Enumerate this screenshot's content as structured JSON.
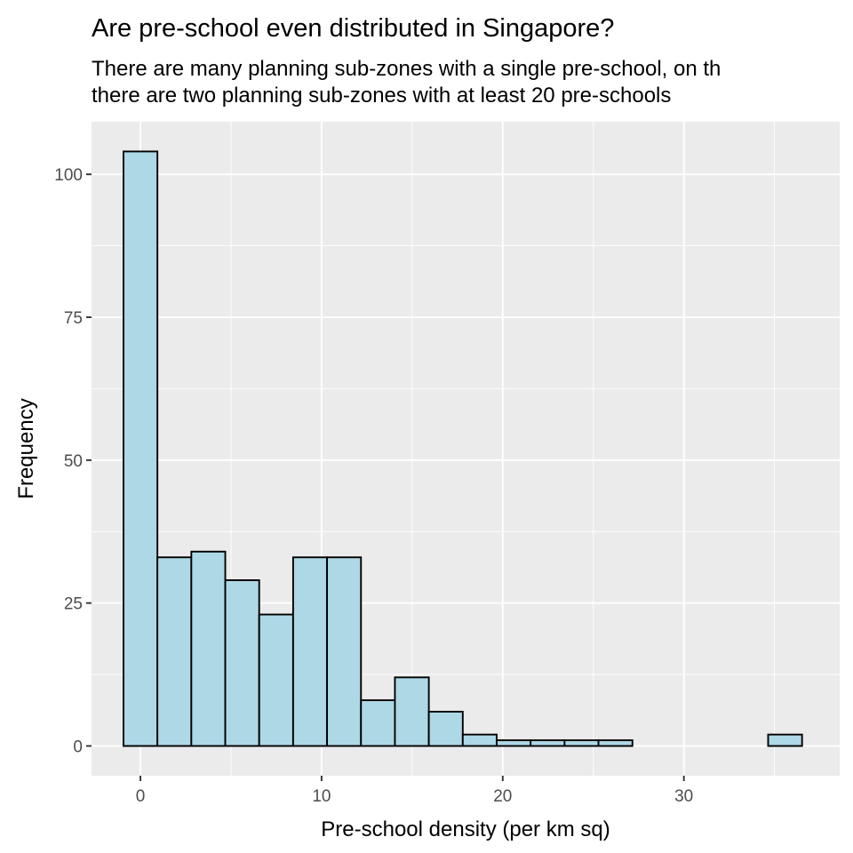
{
  "chart_data": {
    "type": "bar",
    "title": "Are pre-school even distributed in Singapore?",
    "subtitle_lines": [
      "There are many planning sub-zones with a single pre-school, on th",
      "there are two planning sub-zones with at least 20 pre-schools"
    ],
    "xlabel": "Pre-school density (per km sq)",
    "ylabel": "Frequency",
    "xlim": [
      -2.7,
      38.6
    ],
    "ylim": [
      -5.2,
      109.2
    ],
    "x_ticks": [
      0,
      10,
      20,
      30
    ],
    "y_ticks": [
      0,
      25,
      50,
      75,
      100
    ],
    "grid": true,
    "bin_width": 1.873,
    "bin_starts": [
      -0.936,
      0.937,
      2.81,
      4.683,
      6.556,
      8.429,
      10.302,
      12.175,
      14.048,
      15.921,
      17.794,
      19.667,
      21.54,
      23.413,
      25.286,
      27.159,
      29.032,
      30.905,
      32.778,
      34.651
    ],
    "values": [
      104,
      33,
      34,
      29,
      23,
      33,
      33,
      8,
      12,
      6,
      2,
      1,
      1,
      1,
      1,
      0,
      0,
      0,
      0,
      2
    ],
    "bar_fill": "#add8e6",
    "bar_stroke": "#000000",
    "panel_background": "#ebebeb",
    "grid_color": "#ffffff"
  }
}
